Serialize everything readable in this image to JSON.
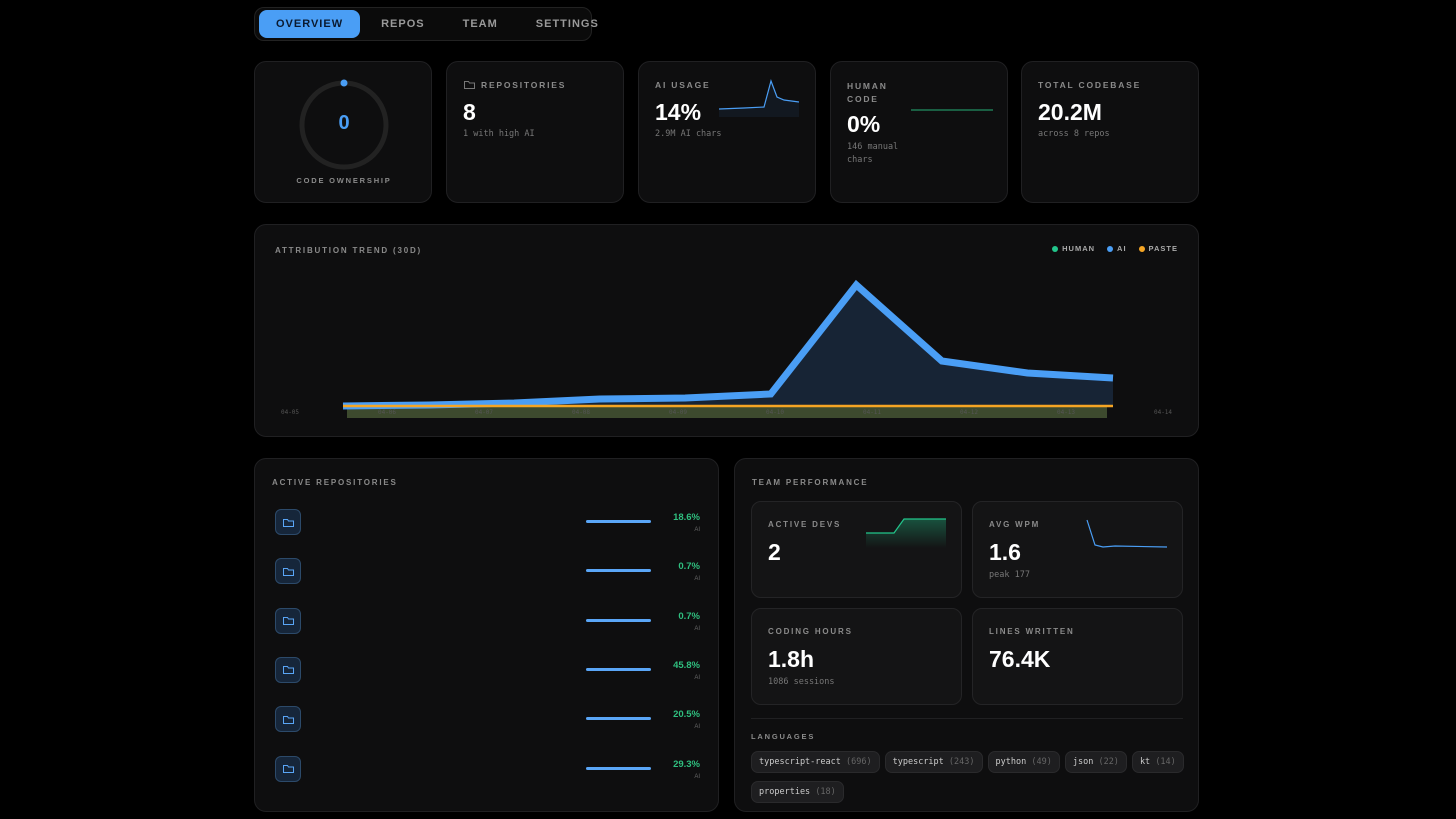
{
  "nav": {
    "tabs": [
      "OVERVIEW",
      "REPOS",
      "TEAM",
      "SETTINGS"
    ],
    "active": 0
  },
  "cards": {
    "ownership": {
      "value": "0",
      "label": "CODE OWNERSHIP"
    },
    "repos": {
      "label": "REPOSITORIES",
      "value": "8",
      "sub": "1 with high AI"
    },
    "ai": {
      "label": "AI USAGE",
      "value": "14%",
      "sub": "2.9M AI chars"
    },
    "human": {
      "label": "HUMAN CODE",
      "value": "0%",
      "sub": "146 manual chars"
    },
    "total": {
      "label": "TOTAL CODEBASE",
      "value": "20.2M",
      "sub": "across 8 repos"
    }
  },
  "colors": {
    "human": "#22c58b",
    "ai": "#4a9ef5",
    "paste": "#f5a524"
  },
  "chart_data": {
    "type": "area",
    "title": "ATTRIBUTION TREND (30D)",
    "legend": [
      "HUMAN",
      "AI",
      "PASTE"
    ],
    "legend_position": "top-right",
    "xticks": [
      "04-05",
      "04-06",
      "04-07",
      "04-08",
      "04-09",
      "04-10",
      "04-11",
      "04-12",
      "04-13",
      "04-14"
    ],
    "series": [
      {
        "name": "AI",
        "values": [
          0,
          1,
          3,
          7,
          8,
          12,
          121,
          45,
          33,
          28
        ]
      },
      {
        "name": "HUMAN",
        "values": [
          0,
          0,
          0,
          0,
          0,
          0,
          0,
          0,
          0,
          0
        ]
      },
      {
        "name": "PASTE",
        "values": [
          0,
          0,
          0,
          0,
          0,
          0,
          0,
          0,
          0,
          0
        ]
      }
    ]
  },
  "repos": {
    "title": "ACTIVE REPOSITORIES",
    "ai_label": "AI",
    "items": [
      {
        "pct": "18.6%"
      },
      {
        "pct": "0.7%"
      },
      {
        "pct": "0.7%"
      },
      {
        "pct": "45.8%"
      },
      {
        "pct": "20.5%"
      },
      {
        "pct": "29.3%"
      }
    ]
  },
  "team": {
    "title": "TEAM PERFORMANCE",
    "devs": {
      "label": "ACTIVE DEVS",
      "value": "2"
    },
    "wpm": {
      "label": "AVG WPM",
      "value": "1.6",
      "sub": "peak 177"
    },
    "hours": {
      "label": "CODING HOURS",
      "value": "1.8h",
      "sub": "1086 sessions"
    },
    "lines": {
      "label": "LINES WRITTEN",
      "value": "76.4K"
    },
    "languages_label": "LANGUAGES",
    "languages": [
      {
        "name": "typescript-react",
        "count": "(696)"
      },
      {
        "name": "typescript",
        "count": "(243)"
      },
      {
        "name": "python",
        "count": "(49)"
      },
      {
        "name": "json",
        "count": "(22)"
      },
      {
        "name": "kt",
        "count": "(14)"
      },
      {
        "name": "properties",
        "count": "(18)"
      }
    ]
  }
}
